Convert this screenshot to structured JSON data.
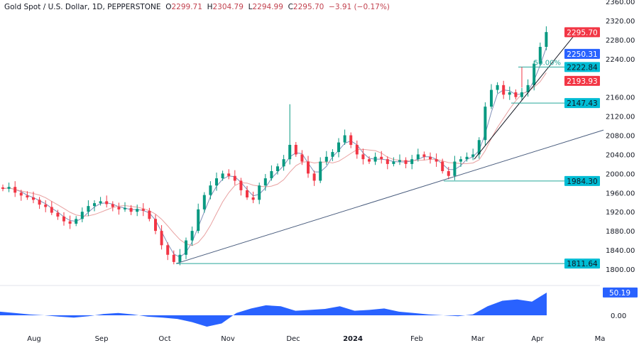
{
  "header": {
    "symbol": "Gold Spot / U.S. Dollar, 1D, PEPPERSTONE",
    "open_label": "O",
    "open": "2299.71",
    "high_label": "H",
    "high": "2304.79",
    "low_label": "L",
    "low": "2294.99",
    "close_label": "C",
    "close": "2295.70",
    "change": "−3.91 (−0.17%)"
  },
  "chart_data": {
    "type": "candlestick",
    "price_axis": {
      "ticks": [
        "2360.00",
        "2320.00",
        "2280.00",
        "2240.00",
        "2160.00",
        "2120.00",
        "2080.00",
        "2040.00",
        "2000.00",
        "1960.00",
        "1920.00",
        "1880.00",
        "1840.00",
        "1800.00"
      ],
      "range": [
        1790,
        2365
      ]
    },
    "time_axis": {
      "ticks": [
        "Aug",
        "Sep",
        "Oct",
        "Nov",
        "Dec",
        "2024",
        "Feb",
        "Mar",
        "Apr",
        "Ma"
      ]
    },
    "closes": [
      1968,
      1972,
      1960,
      1954,
      1950,
      1945,
      1935,
      1930,
      1918,
      1910,
      1900,
      1895,
      1905,
      1920,
      1932,
      1938,
      1942,
      1936,
      1930,
      1925,
      1928,
      1920,
      1926,
      1922,
      1905,
      1880,
      1850,
      1830,
      1815,
      1830,
      1860,
      1880,
      1925,
      1955,
      1975,
      1990,
      2000,
      1995,
      1985,
      1965,
      1950,
      1945,
      1975,
      1990,
      2005,
      2015,
      2030,
      2060,
      2040,
      2025,
      2000,
      1985,
      2025,
      2035,
      2045,
      2065,
      2080,
      2060,
      2040,
      2030,
      2025,
      2035,
      2030,
      2020,
      2025,
      2028,
      2020,
      2030,
      2040,
      2035,
      2030,
      2025,
      2005,
      1995,
      2025,
      2030,
      2035,
      2040,
      2070,
      2140,
      2175,
      2185,
      2165,
      2170,
      2160,
      2170,
      2185,
      2230,
      2265,
      2296
    ],
    "price_labels": [
      {
        "text": "2295.70",
        "value": 2295.7,
        "color": "#f23645"
      },
      {
        "text": "2250.31",
        "value": 2250.31,
        "color": "#2962ff"
      },
      {
        "text": "2222.84",
        "value": 2222.84,
        "color": "#00bcd4"
      },
      {
        "text": "2193.93",
        "value": 2193.93,
        "color": "#f23645"
      },
      {
        "text": "2147.43",
        "value": 2147.43,
        "color": "#00bcd4"
      },
      {
        "text": "1984.30",
        "value": 1984.3,
        "color": "#00bcd4"
      },
      {
        "text": "1811.64",
        "value": 1811.64,
        "color": "#00bcd4"
      }
    ],
    "fib_label": "50.00%",
    "oscillator": {
      "values": [
        8,
        5,
        2,
        0,
        -3,
        -5,
        -2,
        3,
        5,
        2,
        -3,
        -5,
        -8,
        -15,
        -25,
        -18,
        5,
        15,
        22,
        20,
        10,
        12,
        14,
        20,
        10,
        12,
        15,
        8,
        5,
        2,
        0,
        -2,
        2,
        20,
        32,
        35,
        30,
        50
      ],
      "label": "50.19",
      "zero_tick": "0.00",
      "color": "#2962ff"
    },
    "colors": {
      "up": "#089981",
      "down": "#f23645",
      "ma_fast": "#7f8fb8",
      "ma_slow": "#e8a0a0",
      "level": "#26a69a",
      "trend": "#4a5d7e"
    }
  }
}
